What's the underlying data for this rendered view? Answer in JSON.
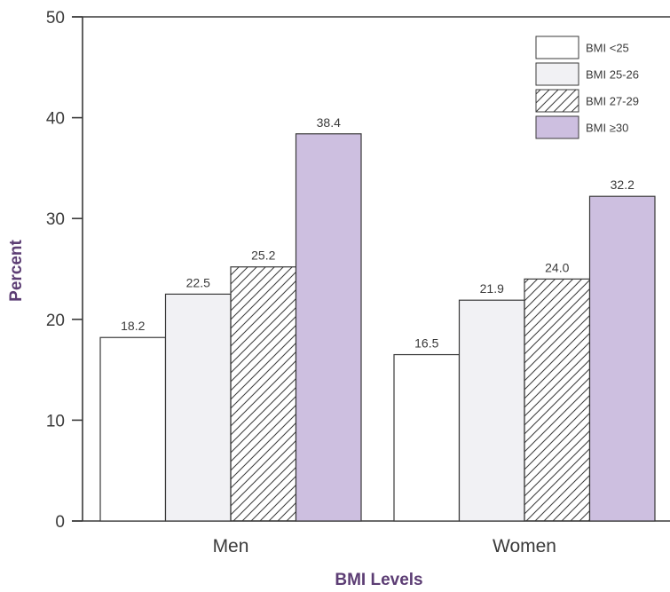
{
  "chart_data": {
    "type": "bar",
    "title": "",
    "xlabel": "BMI Levels",
    "ylabel": "Percent",
    "ylim": [
      0,
      50
    ],
    "yticks": [
      0,
      10,
      20,
      30,
      40,
      50
    ],
    "grid": false,
    "legend_position": "top-right",
    "categories": [
      "Men",
      "Women"
    ],
    "series": [
      {
        "name": "BMI <25",
        "values": [
          18.2,
          16.5
        ],
        "labels": [
          "18.2",
          "16.5"
        ],
        "fill": "#ffffff",
        "pattern": "none"
      },
      {
        "name": "BMI 25-26",
        "values": [
          22.5,
          21.9
        ],
        "labels": [
          "22.5",
          "21.9"
        ],
        "fill": "#f1f1f4",
        "pattern": "none"
      },
      {
        "name": "BMI 27-29",
        "values": [
          25.2,
          24.0
        ],
        "labels": [
          "25.2",
          "24.0"
        ],
        "fill": "#ffffff",
        "pattern": "diagonal-hatch"
      },
      {
        "name": "BMI ≥30",
        "values": [
          38.4,
          32.2
        ],
        "labels": [
          "38.4",
          "32.2"
        ],
        "fill": "#cdbfe0",
        "pattern": "none"
      }
    ],
    "colors": {
      "axis": "#3a3a3a",
      "bar_stroke": "#3a3a3a",
      "axis_title": "#5c3d74"
    }
  }
}
